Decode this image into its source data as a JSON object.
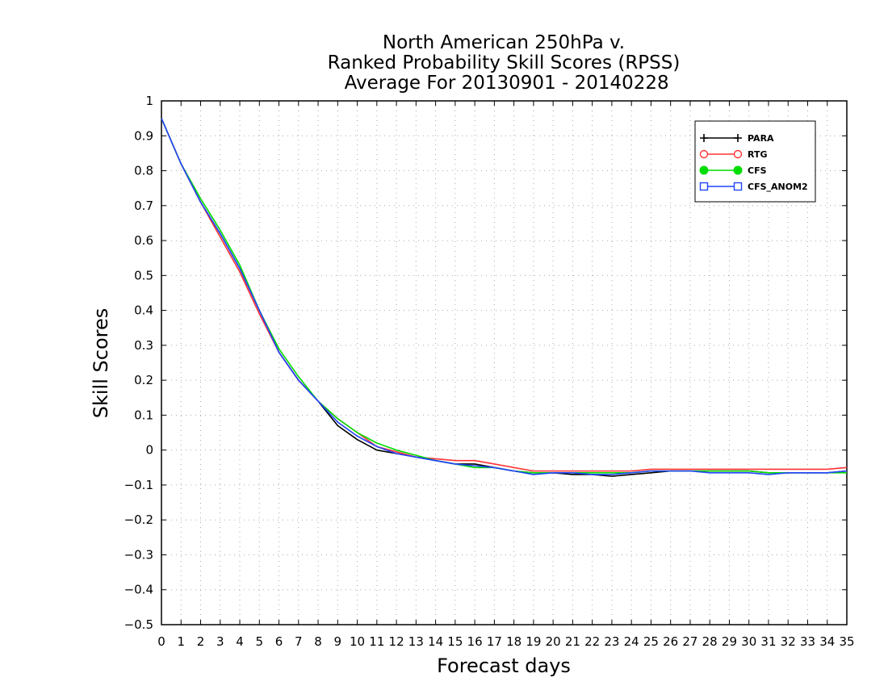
{
  "chart_data": {
    "type": "line",
    "title_lines": [
      "North American 250hPa v.",
      "Ranked Probability Skill Scores (RPSS)",
      " Average For 20130901 - 20140228"
    ],
    "xlabel": "Forecast days",
    "ylabel": "Skill Scores",
    "xlim": [
      0,
      35
    ],
    "ylim": [
      -0.5,
      1
    ],
    "x_ticks": [
      0,
      1,
      2,
      3,
      4,
      5,
      6,
      7,
      8,
      9,
      10,
      11,
      12,
      13,
      14,
      15,
      16,
      17,
      18,
      19,
      20,
      21,
      22,
      23,
      24,
      25,
      26,
      27,
      28,
      29,
      30,
      31,
      32,
      33,
      34,
      35
    ],
    "y_ticks": [
      1,
      0.9,
      0.8,
      0.7,
      0.6,
      0.5,
      0.4,
      0.3,
      0.2,
      0.1,
      0,
      -0.1,
      -0.2,
      -0.3,
      -0.4,
      -0.5
    ],
    "y_tick_labels": [
      "1",
      "0.9",
      "0.8",
      "0.7",
      "0.6",
      "0.5",
      "0.4",
      "0.3",
      "0.2",
      "0.1",
      "0",
      "−0.1",
      "−0.2",
      "−0.3",
      "−0.4",
      "−0.5"
    ],
    "grid": true,
    "legend_position": "top-right",
    "x": [
      0,
      1,
      2,
      3,
      4,
      5,
      6,
      7,
      8,
      9,
      10,
      11,
      12,
      13,
      14,
      15,
      16,
      17,
      18,
      19,
      20,
      21,
      22,
      23,
      24,
      25,
      26,
      27,
      28,
      29,
      30,
      31,
      32,
      33,
      34,
      35
    ],
    "series": [
      {
        "name": "PARA",
        "color": "#000000",
        "marker": "plus",
        "values": [
          0.95,
          0.82,
          0.71,
          0.62,
          0.52,
          0.4,
          0.28,
          0.2,
          0.14,
          0.07,
          0.03,
          0.0,
          -0.01,
          -0.02,
          -0.03,
          -0.04,
          -0.04,
          -0.05,
          -0.06,
          -0.065,
          -0.065,
          -0.07,
          -0.07,
          -0.075,
          -0.07,
          -0.065,
          -0.06,
          -0.06,
          -0.06,
          -0.06,
          -0.06,
          -0.065,
          -0.065,
          -0.065,
          -0.065,
          -0.06
        ]
      },
      {
        "name": "RTG",
        "color": "#ff3333",
        "marker": "open-circle",
        "values": [
          0.95,
          0.82,
          0.71,
          0.61,
          0.51,
          0.39,
          0.28,
          0.2,
          0.14,
          0.09,
          0.05,
          0.01,
          -0.005,
          -0.02,
          -0.025,
          -0.03,
          -0.03,
          -0.04,
          -0.05,
          -0.06,
          -0.06,
          -0.06,
          -0.06,
          -0.06,
          -0.06,
          -0.055,
          -0.055,
          -0.055,
          -0.055,
          -0.055,
          -0.055,
          -0.055,
          -0.055,
          -0.055,
          -0.055,
          -0.05
        ]
      },
      {
        "name": "CFS",
        "color": "#00dd00",
        "marker": "filled-circle",
        "values": [
          0.95,
          0.82,
          0.72,
          0.63,
          0.53,
          0.4,
          0.29,
          0.21,
          0.14,
          0.09,
          0.05,
          0.02,
          0.0,
          -0.015,
          -0.03,
          -0.04,
          -0.05,
          -0.05,
          -0.06,
          -0.065,
          -0.065,
          -0.065,
          -0.065,
          -0.065,
          -0.065,
          -0.06,
          -0.06,
          -0.06,
          -0.06,
          -0.06,
          -0.06,
          -0.065,
          -0.065,
          -0.065,
          -0.065,
          -0.065
        ]
      },
      {
        "name": "CFS_ANOM2",
        "color": "#2244ff",
        "marker": "open-square",
        "values": [
          0.95,
          0.82,
          0.71,
          0.62,
          0.52,
          0.4,
          0.28,
          0.2,
          0.14,
          0.08,
          0.04,
          0.01,
          -0.01,
          -0.02,
          -0.03,
          -0.04,
          -0.045,
          -0.05,
          -0.06,
          -0.07,
          -0.065,
          -0.065,
          -0.07,
          -0.07,
          -0.065,
          -0.06,
          -0.06,
          -0.06,
          -0.065,
          -0.065,
          -0.065,
          -0.07,
          -0.065,
          -0.065,
          -0.065,
          -0.06
        ]
      }
    ]
  }
}
